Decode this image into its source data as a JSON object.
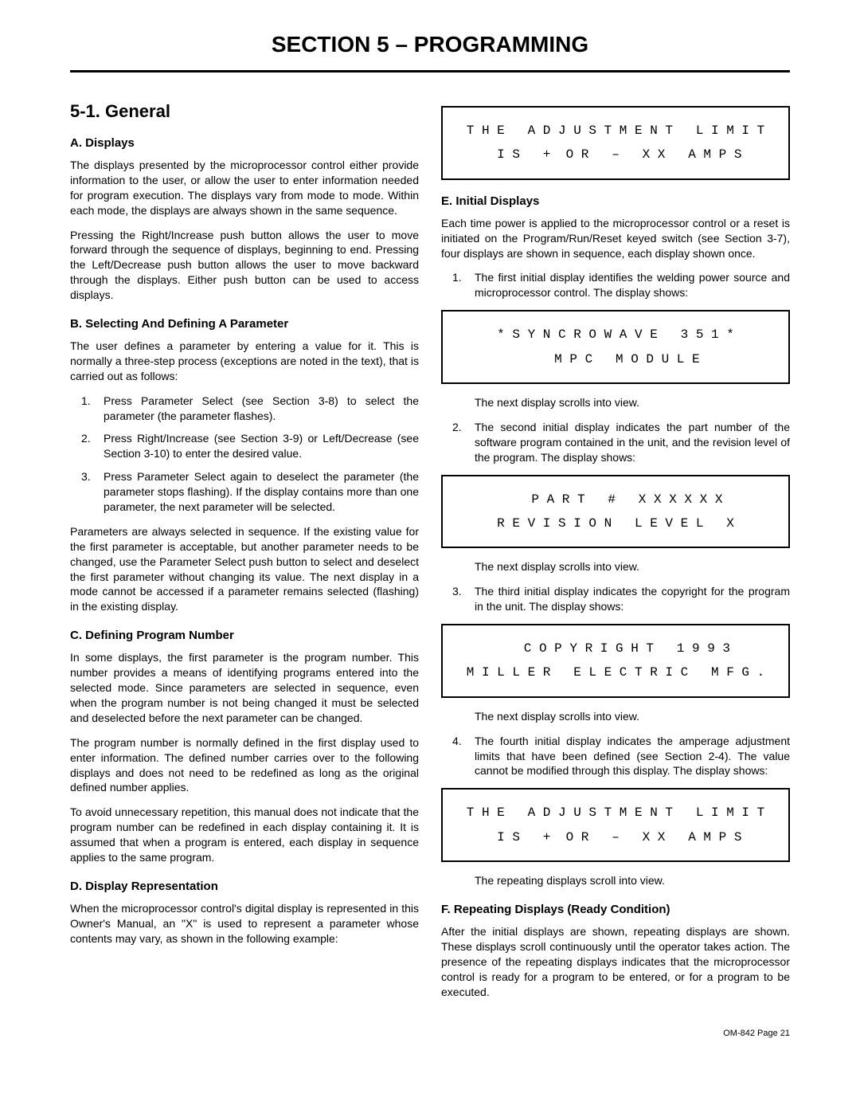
{
  "section_title": "SECTION 5 – PROGRAMMING",
  "h2": "5-1.  General",
  "left": {
    "A": {
      "heading": "A.  Displays",
      "p1": "The displays presented by the microprocessor control either provide information to the user, or allow the user to enter information needed for program execution. The displays vary from mode to mode. Within each mode, the displays are always shown in the same sequence.",
      "p2": "Pressing the Right/Increase push button allows the user to move forward through the sequence of displays, beginning to end. Pressing the Left/Decrease push button allows the user to move backward through the displays. Either push button can be used to access displays."
    },
    "B": {
      "heading": "B.  Selecting And Defining A Parameter",
      "p1": "The user defines a parameter by entering a value for it. This is normally a three-step process (exceptions are noted in the text), that is carried out as follows:",
      "li1": "Press Parameter Select (see Section 3-8) to select the parameter (the parameter flashes).",
      "li2": "Press Right/Increase (see Section 3-9) or Left/Decrease (see Section 3-10) to enter the desired value.",
      "li3": "Press Parameter Select again to deselect the parameter (the parameter stops flashing). If the display contains more than one parameter, the next parameter will be selected.",
      "p2": "Parameters are always selected in sequence. If the existing value for the first parameter is acceptable, but another parameter needs to be changed, use the Parameter Select push button to select and deselect the first parameter without changing its value. The next display in a mode cannot be accessed if a parameter remains selected (flashing) in the existing display."
    },
    "C": {
      "heading": "C.  Defining Program Number",
      "p1": "In some displays, the first parameter is the program number. This number provides a means of identifying programs entered into the selected mode. Since parameters are selected in sequence, even when the program number is not being changed it must be selected and deselected before the next parameter can be changed.",
      "p2": "The program number is normally defined in the first display used to enter information. The defined number carries over to the following displays and does not need to be redefined as long as the original defined number applies.",
      "p3": "To avoid unnecessary repetition, this manual does not indicate that the program number can be redefined in each display containing it. It is assumed that when a program is entered, each display in sequence applies to the same program."
    },
    "D": {
      "heading": "D.  Display Representation",
      "p1": "When the microprocessor control's digital display is represented in this Owner's Manual, an \"X\" is used to represent a parameter whose contents may vary, as shown in the following example:"
    }
  },
  "right": {
    "box1": "T H E   A D J U S T M E N T   L I M I T\n I S   +  O R   –   X X   A M P S",
    "E": {
      "heading": "E.  Initial Displays",
      "p1": "Each time power is applied to the microprocessor control or a reset is initiated on the Program/Run/Reset keyed switch (see Section 3-7), four displays are shown in sequence, each display shown once.",
      "li1": "The first initial display identifies the welding power source and microprocessor control. The display shows:",
      "box2": "* S Y N C R O W A V E   3 5 1 *\n   M P C   M O D U L E",
      "scroll1": "The next display scrolls into view.",
      "li2": "The second initial display indicates the part number of the software program contained in the unit, and the revision level of the program. The display shows:",
      "box3": "   P A R T   #   X X X X X X\nR E V I S I O N   L E V E L   X",
      "scroll2": "The next display scrolls into view.",
      "li3": "The third initial display indicates the copyright for the program in the unit. The display shows:",
      "box4": "   C O P Y R I G H T   1 9 9 3\nM I L L E R   E L E C T R I C   M F G .",
      "scroll3": "The next display scrolls into view.",
      "li4": "The fourth initial display indicates the amperage adjustment limits that have been defined (see Section 2-4). The value cannot be modified through this display. The display shows:",
      "box5": "T H E   A D J U S T M E N T   L I M I T\n I S   +  O R   –   X X   A M P S",
      "scroll4": "The repeating displays scroll into view."
    },
    "F": {
      "heading": "F.  Repeating Displays (Ready Condition)",
      "p1": "After the initial displays are shown, repeating displays are shown. These displays scroll continuously until the operator takes action. The presence of the repeating displays indicates that the microprocessor control is ready for a program to be entered, or for a program to be executed."
    }
  },
  "footer": "OM-842 Page 21"
}
